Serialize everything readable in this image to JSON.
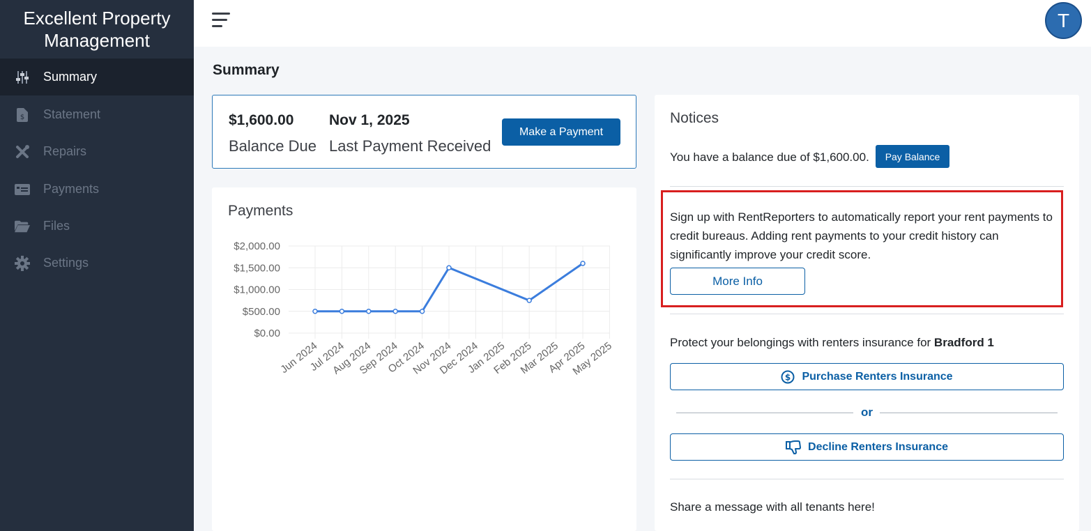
{
  "app": {
    "title": "Excellent Property Management"
  },
  "sidebar": {
    "items": [
      {
        "label": "Summary",
        "icon": "sliders-icon",
        "active": true
      },
      {
        "label": "Statement",
        "icon": "file-dollar-icon",
        "active": false
      },
      {
        "label": "Repairs",
        "icon": "tools-icon",
        "active": false
      },
      {
        "label": "Payments",
        "icon": "money-bill-icon",
        "active": false
      },
      {
        "label": "Files",
        "icon": "folder-open-icon",
        "active": false
      },
      {
        "label": "Settings",
        "icon": "gear-icon",
        "active": false
      }
    ]
  },
  "topbar": {
    "avatar_initial": "T"
  },
  "page": {
    "title": "Summary"
  },
  "balance": {
    "amount": "$1,600.00",
    "amount_label": "Balance Due",
    "last_payment_date": "Nov 1, 2025",
    "last_payment_label": "Last Payment Received",
    "pay_button": "Make a Payment"
  },
  "payments_chart": {
    "title": "Payments"
  },
  "chart_data": {
    "type": "line",
    "title": "Payments",
    "categories": [
      "Jun 2024",
      "Jul 2024",
      "Aug 2024",
      "Sep 2024",
      "Oct 2024",
      "Nov 2024",
      "Dec 2024",
      "Jan 2025",
      "Feb 2025",
      "Mar 2025",
      "Apr 2025",
      "May 2025"
    ],
    "series": [
      {
        "values": [
          500,
          500,
          500,
          500,
          500,
          1500,
          null,
          null,
          750,
          null,
          1600,
          null
        ]
      }
    ],
    "ylim": [
      0,
      2000
    ],
    "yticks": [
      "$0.00",
      "$500.00",
      "$1,000.00",
      "$1,500.00",
      "$2,000.00"
    ],
    "ytick_values": [
      0,
      500,
      1000,
      1500,
      2000
    ],
    "grid": true,
    "color": "#3b7ddd"
  },
  "notices": {
    "title": "Notices",
    "balance_text": "You have a balance due of $1,600.00.",
    "pay_balance_button": "Pay Balance",
    "rentreporters_text": "Sign up with RentReporters to automatically report your rent payments to credit bureaus. Adding rent payments to your credit history can significantly improve your credit score.",
    "more_info_button": "More Info",
    "insurance_text": "Protect your belongings with renters insurance for ",
    "insurance_property": "Bradford 1",
    "purchase_button": "Purchase Renters Insurance",
    "or_text": "or",
    "decline_button": "Decline Renters Insurance",
    "share_text": "Share a message with all tenants here!"
  },
  "colors": {
    "sidebar_bg": "#252f3e",
    "primary": "#0b5fa5",
    "highlight": "#d81f1f"
  }
}
